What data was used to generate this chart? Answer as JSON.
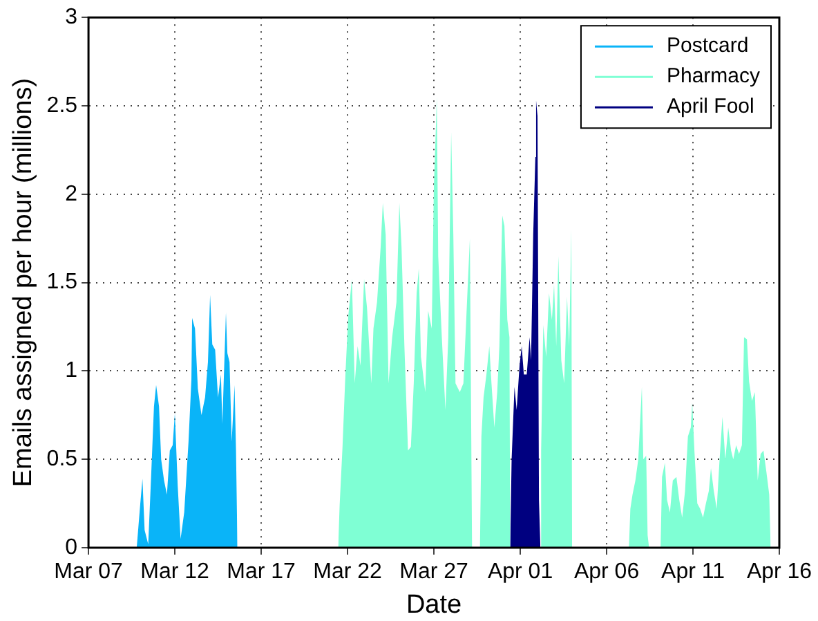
{
  "chart_data": {
    "type": "area",
    "xlabel": "Date",
    "ylabel": "Emails assigned per hour (millions)",
    "xlim": [
      "--03-07",
      "--04-16"
    ],
    "xticks": [
      {
        "value": "--03-07",
        "label": "Mar 07"
      },
      {
        "value": "--03-12",
        "label": "Mar 12"
      },
      {
        "value": "--03-17",
        "label": "Mar 17"
      },
      {
        "value": "--03-22",
        "label": "Mar 22"
      },
      {
        "value": "--03-27",
        "label": "Mar 27"
      },
      {
        "value": "--04-01",
        "label": "Apr 01"
      },
      {
        "value": "--04-06",
        "label": "Apr 06"
      },
      {
        "value": "--04-11",
        "label": "Apr 11"
      },
      {
        "value": "--04-16",
        "label": "Apr 16"
      }
    ],
    "ylim": [
      0,
      3
    ],
    "yticks": [
      0,
      0.5,
      1,
      1.5,
      2,
      2.5,
      3
    ],
    "grid": true,
    "legend": "top right",
    "line_style": "solid",
    "series": [
      {
        "name": "Postcard",
        "color": "#0ab4f8",
        "x": [
          "--03-09T19:00",
          "--03-10T00:00",
          "--03-10T03:00",
          "--03-10T06:00",
          "--03-10T11:00",
          "--03-10T15:00",
          "--03-10T19:00",
          "--03-10T22:00",
          "--03-11T02:00",
          "--03-11T05:00",
          "--03-11T09:00",
          "--03-11T13:00",
          "--03-11T17:00",
          "--03-11T21:00",
          "--03-12T00:00",
          "--03-12T04:00",
          "--03-12T08:00",
          "--03-12T13:00",
          "--03-12T19:00",
          "--03-12T23:00",
          "--03-13T00:00",
          "--03-13T04:00",
          "--03-13T08:00",
          "--03-13T13:00",
          "--03-13T18:00",
          "--03-13T22:00",
          "--03-14T01:00",
          "--03-14T04:00",
          "--03-14T08:00",
          "--03-14T12:00",
          "--03-14T16:00",
          "--03-14T18:00",
          "--03-14T23:00",
          "--03-15T01:00",
          "--03-15T04:00",
          "--03-15T07:00",
          "--03-15T11:00",
          "--03-15T13:00",
          "--03-15T15:00"
        ],
        "values": [
          0,
          0.25,
          0.39,
          0.1,
          0.02,
          0.4,
          0.8,
          0.92,
          0.8,
          0.5,
          0.38,
          0.3,
          0.55,
          0.58,
          0.76,
          0.35,
          0.05,
          0.2,
          0.6,
          0.95,
          1.3,
          1.24,
          0.9,
          0.75,
          0.85,
          1.05,
          1.43,
          1.15,
          1.12,
          0.85,
          0.98,
          0.7,
          1.33,
          1.1,
          1.05,
          0.6,
          0.92,
          0.55,
          0
        ]
      },
      {
        "name": "Pharmacy",
        "color": "#7fffd4",
        "x": [
          "--03-21T11:00",
          "--03-21T13:00",
          "--03-21T17:00",
          "--03-21T21:00",
          "--03-22T01:00",
          "--03-22T06:00",
          "--03-22T10:00",
          "--03-22T14:00",
          "--03-22T18:00",
          "--03-22T23:00",
          "--03-23T03:00",
          "--03-23T09:00",
          "--03-23T12:00",
          "--03-23T17:00",
          "--03-23T22:00",
          "--03-24T01:00",
          "--03-24T05:00",
          "--03-24T09:00",
          "--03-24T14:00",
          "--03-24T20:00",
          "--03-25T00:00",
          "--03-25T03:00",
          "--03-25T07:00",
          "--03-25T12:00",
          "--03-25T16:00",
          "--03-25T20:00",
          "--03-26T00:00",
          "--03-26T03:00",
          "--03-26T06:00",
          "--03-26T12:00",
          "--03-26T16:00",
          "--03-26T21:00",
          "--03-27T00:00",
          "--03-27T03:00",
          "--03-27T04:00",
          "--03-27T06:00",
          "--03-27T11:00",
          "--03-27T16:00",
          "--03-27T20:00",
          "--03-28T00:00",
          "--03-28T03:00",
          "--03-28T06:00",
          "--03-28T12:00",
          "--03-28T17:00",
          "--03-28T22:00",
          "--03-29T02:00",
          "--03-29T05:00",
          "--03-29T16:00",
          "--03-29T18:00",
          "--03-29T21:00",
          "--03-30T01:00",
          "--03-30T05:00",
          "--03-30T08:00",
          "--03-30T12:00",
          "--03-30T16:00",
          "--03-30T19:00",
          "--03-30T23:00",
          "--03-31T02:00",
          "--03-31T06:00",
          "--03-31T09:00",
          "--03-31T10:00",
          "--04-02T04:00",
          "--04-02T05:00",
          "--04-02T08:00",
          "--04-02T12:00",
          "--04-02T16:00",
          "--04-02T20:00",
          "--04-02T23:00",
          "--04-03T02:00",
          "--04-03T05:00",
          "--04-03T09:00",
          "--04-03T13:00",
          "--04-03T17:00",
          "--04-03T20:00",
          "--04-03T23:00",
          "--04-04T00:00",
          "--04-07T07:00",
          "--04-07T09:00",
          "--04-07T12:00",
          "--04-07T16:00",
          "--04-07T20:00",
          "--04-08T01:00",
          "--04-08T03:00",
          "--04-08T07:00",
          "--04-08T09:00",
          "--04-08T11:00",
          "--04-09T03:00",
          "--04-09T05:00",
          "--04-09T09:00",
          "--04-09T12:00",
          "--04-09T16:00",
          "--04-09T20:00",
          "--04-10T01:00",
          "--04-10T05:00",
          "--04-10T09:00",
          "--04-10T13:00",
          "--04-10T17:00",
          "--04-10T21:00",
          "--04-10T23:00",
          "--04-11T02:00",
          "--04-11T06:00",
          "--04-11T10:00",
          "--04-11T14:00",
          "--04-11T18:00",
          "--04-11T22:00",
          "--04-12T01:00",
          "--04-12T05:00",
          "--04-12T09:00",
          "--04-12T13:00",
          "--04-12T17:00",
          "--04-12T21:00",
          "--04-13T01:00",
          "--04-13T05:00",
          "--04-13T08:00",
          "--04-13T12:00",
          "--04-13T16:00",
          "--04-13T20:00",
          "--04-13T23:00",
          "--04-14T03:00",
          "--04-14T06:00",
          "--04-14T10:00",
          "--04-14T14:00",
          "--04-14T18:00",
          "--04-14T22:00",
          "--04-15T02:00",
          "--04-15T06:00",
          "--04-15T10:00",
          "--04-15T12:00"
        ],
        "values": [
          0,
          0.24,
          0.57,
          0.98,
          1.31,
          1.52,
          0.93,
          1.14,
          1.03,
          1.52,
          1.36,
          0.93,
          1.24,
          1.39,
          1.7,
          1.95,
          1.77,
          0.93,
          1.19,
          1.39,
          1.95,
          1.7,
          1.14,
          0.55,
          0.57,
          0.93,
          1.44,
          1.58,
          1.08,
          0.88,
          1.34,
          1.24,
          2.05,
          2.41,
          2.55,
          1.65,
          1.19,
          0.78,
          1.19,
          2.35,
          1.77,
          0.93,
          0.88,
          0.93,
          1.39,
          1.75,
          0,
          0,
          0.63,
          0.85,
          0.98,
          1.14,
          0.93,
          0.68,
          0.88,
          1.14,
          1.88,
          1.82,
          1.29,
          1.19,
          0,
          0,
          0.55,
          1.26,
          1.08,
          1.44,
          1.29,
          1.49,
          1.14,
          1.65,
          1.06,
          0.93,
          1.42,
          1.14,
          1.8,
          0,
          0,
          0.22,
          0.3,
          0.38,
          0.5,
          0.91,
          0.5,
          0.52,
          0.07,
          0,
          0,
          0.4,
          0.48,
          0.27,
          0.2,
          0.38,
          0.4,
          0.27,
          0.17,
          0.32,
          0.63,
          0.68,
          0.82,
          0.55,
          0.25,
          0.22,
          0.17,
          0.25,
          0.32,
          0.45,
          0.32,
          0.22,
          0.5,
          0.74,
          0.5,
          0.68,
          0.55,
          0.5,
          0.58,
          0.53,
          0.58,
          1.19,
          1.18,
          0.94,
          0.83,
          0.88,
          0.38,
          0.53,
          0.55,
          0.43,
          0.3,
          0
        ]
      },
      {
        "name": "April Fool",
        "color": "#000080",
        "x": [
          "--03-31T10:00",
          "--03-31T12:00",
          "--03-31T16:00",
          "--03-31T19:00",
          "--03-31T23:00",
          "--04-01T02:00",
          "--04-01T05:00",
          "--04-01T09:00",
          "--04-01T13:00",
          "--04-01T15:00",
          "--04-01T18:00",
          "--04-01T21:00",
          "--04-01T22:00",
          "--04-02T00:00",
          "--04-02T02:00",
          "--04-02T04:00"
        ],
        "values": [
          0,
          0.5,
          0.91,
          0.78,
          1.03,
          1.14,
          0.98,
          0.98,
          1.19,
          1.06,
          1.77,
          2.21,
          2.53,
          2.44,
          0.27,
          0
        ]
      }
    ]
  }
}
